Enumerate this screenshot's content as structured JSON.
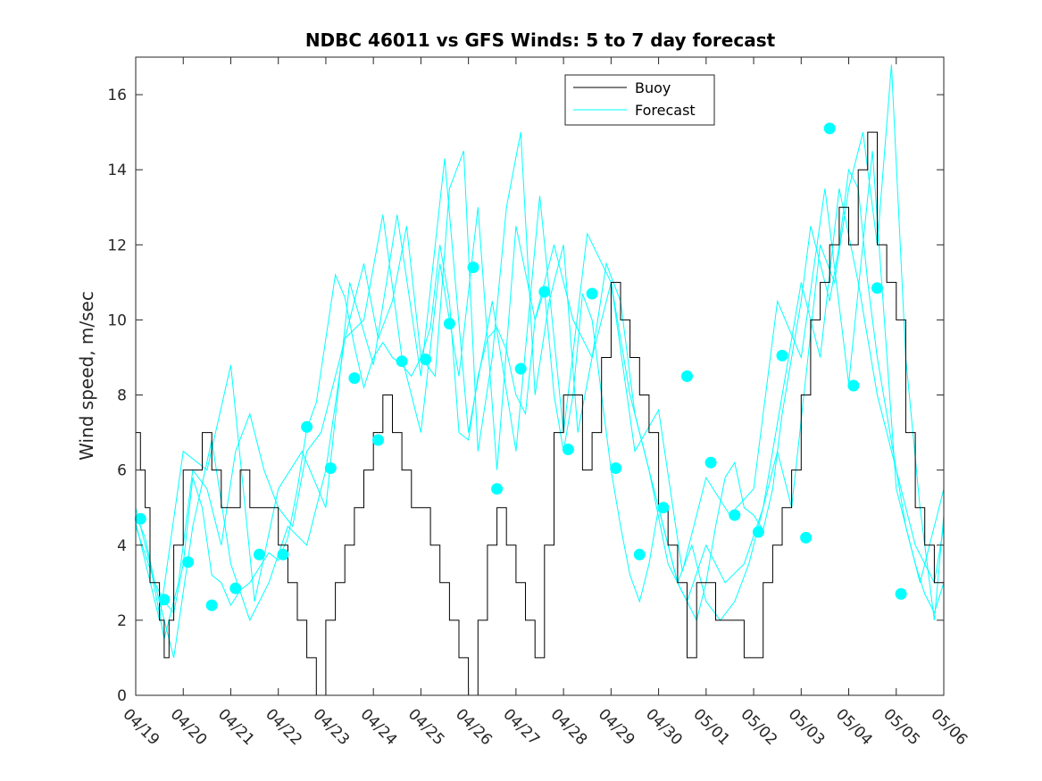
{
  "chart_data": {
    "type": "line",
    "title": "NDBC 46011 vs GFS Winds: 5 to 7 day forecast",
    "ylabel": "Wind speed, m/sec",
    "xlabel": "",
    "xlim": [
      0,
      17
    ],
    "ylim": [
      0,
      17
    ],
    "yticks": [
      0,
      2,
      4,
      6,
      8,
      10,
      12,
      14,
      16
    ],
    "xtick_labels": [
      "04/19",
      "04/20",
      "04/21",
      "04/22",
      "04/23",
      "04/24",
      "04/25",
      "04/26",
      "04/27",
      "04/28",
      "04/29",
      "04/30",
      "05/01",
      "05/02",
      "05/03",
      "05/04",
      "05/05",
      "05/06"
    ],
    "grid": false,
    "legend_position": "top-right",
    "colors": {
      "buoy": "#000000",
      "forecast": "#00ffff",
      "axis": "#262626"
    },
    "series": [
      {
        "name": "Buoy",
        "x": [
          0.0,
          0.1,
          0.2,
          0.3,
          0.5,
          0.6,
          0.7,
          0.8,
          1.0,
          1.2,
          1.4,
          1.6,
          1.8,
          2.0,
          2.2,
          2.4,
          2.6,
          2.8,
          3.0,
          3.2,
          3.4,
          3.6,
          3.8,
          4.0,
          4.2,
          4.4,
          4.6,
          4.8,
          5.0,
          5.2,
          5.4,
          5.6,
          5.8,
          6.0,
          6.2,
          6.4,
          6.6,
          6.8,
          7.0,
          7.2,
          7.4,
          7.6,
          7.8,
          8.0,
          8.2,
          8.4,
          8.6,
          8.8,
          9.0,
          9.2,
          9.4,
          9.6,
          9.8,
          10.0,
          10.2,
          10.4,
          10.6,
          10.8,
          11.0,
          11.2,
          11.4,
          11.6,
          11.8,
          12.0,
          12.2,
          12.4,
          12.6,
          12.8,
          13.0,
          13.2,
          13.4,
          13.6,
          13.8,
          14.0,
          14.2,
          14.4,
          14.6,
          14.8,
          15.0,
          15.2,
          15.4,
          15.6,
          15.8,
          16.0,
          16.2,
          16.4,
          16.6,
          16.8,
          17.0
        ],
        "values": [
          7,
          6,
          5,
          3,
          2,
          1,
          2,
          4,
          6,
          6,
          7,
          6,
          5,
          5,
          6,
          5,
          5,
          5,
          4,
          3,
          2,
          1,
          0,
          2,
          3,
          4,
          5,
          6,
          7,
          8,
          7,
          6,
          5,
          5,
          4,
          3,
          2,
          1,
          0,
          2,
          4,
          5,
          4,
          3,
          2,
          1,
          4,
          7,
          8,
          8,
          6,
          7,
          9,
          11,
          10,
          9,
          8,
          7,
          5,
          4,
          3,
          1,
          3,
          3,
          2,
          2,
          2,
          1,
          1,
          3,
          4,
          5,
          6,
          8,
          10,
          11,
          12,
          13,
          12,
          14,
          15,
          12,
          11,
          10,
          7,
          5,
          4,
          3,
          3
        ]
      },
      {
        "name": "Forecast",
        "runs": [
          {
            "x": [
              0.0,
              0.2,
              0.4,
              0.6,
              0.8,
              1.0,
              1.2,
              1.4,
              1.6,
              1.8,
              2.0,
              2.2,
              2.4,
              2.6,
              2.8,
              3.0,
              3.2,
              3.4,
              3.6,
              3.8,
              4.0,
              4.2,
              4.4,
              4.6,
              4.8,
              5.0,
              5.2,
              5.4,
              5.6,
              5.8,
              6.0,
              6.2,
              6.4,
              6.6,
              6.8,
              7.0,
              7.2,
              7.4,
              7.6,
              7.8,
              8.0,
              8.2,
              8.4,
              8.6,
              8.8,
              9.0,
              9.2,
              9.4,
              9.6,
              9.8,
              10.0,
              10.2,
              10.4,
              10.6,
              10.8,
              11.0,
              11.2,
              11.4,
              11.6,
              11.8,
              12.0,
              12.2,
              12.4,
              12.6,
              12.8,
              13.0,
              13.2,
              13.4,
              13.6,
              13.8,
              14.0,
              14.2,
              14.4,
              14.6,
              14.8,
              15.0,
              15.2,
              15.4,
              15.6,
              15.8,
              16.0,
              16.2,
              16.4,
              16.6,
              16.8,
              17.0
            ],
            "values": [
              4.8,
              4.2,
              3.0,
              2.5,
              2.2,
              3.5,
              5.8,
              5.0,
              3.2,
              3.0,
              2.4,
              2.8,
              3.0,
              3.4,
              3.8,
              3.6,
              4.2,
              5.5,
              7.1,
              7.8,
              9.5,
              11.2,
              10.6,
              9.3,
              8.2,
              9.0,
              9.4,
              9.0,
              8.8,
              8.5,
              9.0,
              9.8,
              12.0,
              10.5,
              7.0,
              6.8,
              8.5,
              9.5,
              9.8,
              9.2,
              8.0,
              7.5,
              10.0,
              10.8,
              8.0,
              6.5,
              8.0,
              10.7,
              10.0,
              8.0,
              6.0,
              4.5,
              3.2,
              2.5,
              3.5,
              5.0,
              4.0,
              3.0,
              2.5,
              2.0,
              3.0,
              4.5,
              5.8,
              6.2,
              5.0,
              4.8,
              4.4,
              5.5,
              7.5,
              9.0,
              10.5,
              12.5,
              11.5,
              10.5,
              12.0,
              14.0,
              13.5,
              11.0,
              9.0,
              7.5,
              6.0,
              4.5,
              3.5,
              2.7,
              2.2,
              3.0
            ]
          },
          {
            "x": [
              0.0,
              0.3,
              0.6,
              0.9,
              1.2,
              1.5,
              1.8,
              2.1,
              2.4,
              2.7,
              3.0,
              3.3,
              3.6,
              3.9,
              4.2,
              4.5,
              4.8,
              5.1,
              5.4,
              5.7,
              6.0,
              6.3,
              6.6,
              6.9,
              7.2,
              7.5,
              7.8,
              8.1,
              8.4,
              8.7,
              9.0,
              9.3,
              9.6,
              9.9,
              10.2,
              10.5,
              10.8,
              11.1,
              11.4,
              11.7,
              12.0,
              12.3,
              12.6,
              12.9,
              13.2,
              13.5,
              13.8,
              14.1,
              14.4,
              14.7,
              15.0,
              15.3,
              15.6,
              15.9,
              16.2,
              16.5,
              16.8,
              17.0
            ],
            "values": [
              5.0,
              3.5,
              1.5,
              3.0,
              6.0,
              5.5,
              4.0,
              6.5,
              7.5,
              6.0,
              5.0,
              4.5,
              6.5,
              7.0,
              8.5,
              10.0,
              11.5,
              9.5,
              10.5,
              12.5,
              9.0,
              8.5,
              13.5,
              14.5,
              6.5,
              9.0,
              13.0,
              15.0,
              8.0,
              10.5,
              12.0,
              7.0,
              9.0,
              11.5,
              10.5,
              7.5,
              6.0,
              4.5,
              3.0,
              4.0,
              2.5,
              2.0,
              2.5,
              3.5,
              5.0,
              6.5,
              5.0,
              8.5,
              12.0,
              11.0,
              13.5,
              15.0,
              12.0,
              16.8,
              9.0,
              5.0,
              2.0,
              4.8
            ]
          },
          {
            "x": [
              0.0,
              0.4,
              0.8,
              1.2,
              1.6,
              2.0,
              2.4,
              2.8,
              3.2,
              3.6,
              4.0,
              4.4,
              4.8,
              5.2,
              5.6,
              6.0,
              6.4,
              6.8,
              7.2,
              7.6,
              8.0,
              8.4,
              8.8,
              9.2,
              9.6,
              10.0,
              10.4,
              10.8,
              11.2,
              11.6,
              12.0,
              12.4,
              12.8,
              13.2,
              13.6,
              14.0,
              14.4,
              14.8,
              15.2,
              15.6,
              16.0,
              16.4,
              16.8,
              17.0
            ],
            "values": [
              4.5,
              3.0,
              1.0,
              4.5,
              6.8,
              3.5,
              2.0,
              3.0,
              4.5,
              4.0,
              6.0,
              9.5,
              10.0,
              12.8,
              9.0,
              7.0,
              11.5,
              8.5,
              13.0,
              6.0,
              12.5,
              10.0,
              12.0,
              10.0,
              9.0,
              11.0,
              8.0,
              6.0,
              3.5,
              2.5,
              4.0,
              3.0,
              3.5,
              5.0,
              8.0,
              11.0,
              9.0,
              13.5,
              11.0,
              8.0,
              6.0,
              4.0,
              3.0,
              4.5
            ]
          },
          {
            "x": [
              0.0,
              0.5,
              1.0,
              1.5,
              2.0,
              2.5,
              3.0,
              3.5,
              4.0,
              4.5,
              5.0,
              5.5,
              6.0,
              6.5,
              7.0,
              7.5,
              8.0,
              8.5,
              9.0,
              9.5,
              10.0,
              10.5,
              11.0,
              11.5,
              12.0,
              12.5,
              13.0,
              13.5,
              14.0,
              14.5,
              15.0,
              15.5,
              16.0,
              16.5,
              17.0
            ],
            "values": [
              4.6,
              2.0,
              6.5,
              6.0,
              8.8,
              2.5,
              5.5,
              6.5,
              5.0,
              11.0,
              8.8,
              12.8,
              8.5,
              14.3,
              7.0,
              10.5,
              6.5,
              13.3,
              7.0,
              12.3,
              11.0,
              6.5,
              7.6,
              3.3,
              5.8,
              4.8,
              5.5,
              10.5,
              9.0,
              13.5,
              8.3,
              14.5,
              5.5,
              3.0,
              5.5
            ]
          }
        ]
      }
    ],
    "markers": {
      "x": [
        0.1,
        0.6,
        1.1,
        1.6,
        2.1,
        2.6,
        3.1,
        3.6,
        4.1,
        4.6,
        5.1,
        5.6,
        6.1,
        6.6,
        7.1,
        7.6,
        8.1,
        8.6,
        9.1,
        9.6,
        10.1,
        10.6,
        11.1,
        11.6,
        12.1,
        12.6,
        13.1,
        13.6,
        14.1,
        14.6,
        15.1,
        15.6,
        16.1,
        16.6
      ],
      "values": [
        4.7,
        2.55,
        3.55,
        2.4,
        2.85,
        3.75,
        3.75,
        7.15,
        6.05,
        8.45,
        6.8,
        8.9,
        8.95,
        9.9,
        11.4,
        5.5,
        8.7,
        10.75,
        6.55,
        10.7,
        6.05,
        3.75,
        5.0,
        8.5,
        6.2,
        4.8,
        4.35,
        9.05,
        4.2,
        15.1,
        8.25,
        10.85,
        2.7,
        null
      ]
    }
  }
}
